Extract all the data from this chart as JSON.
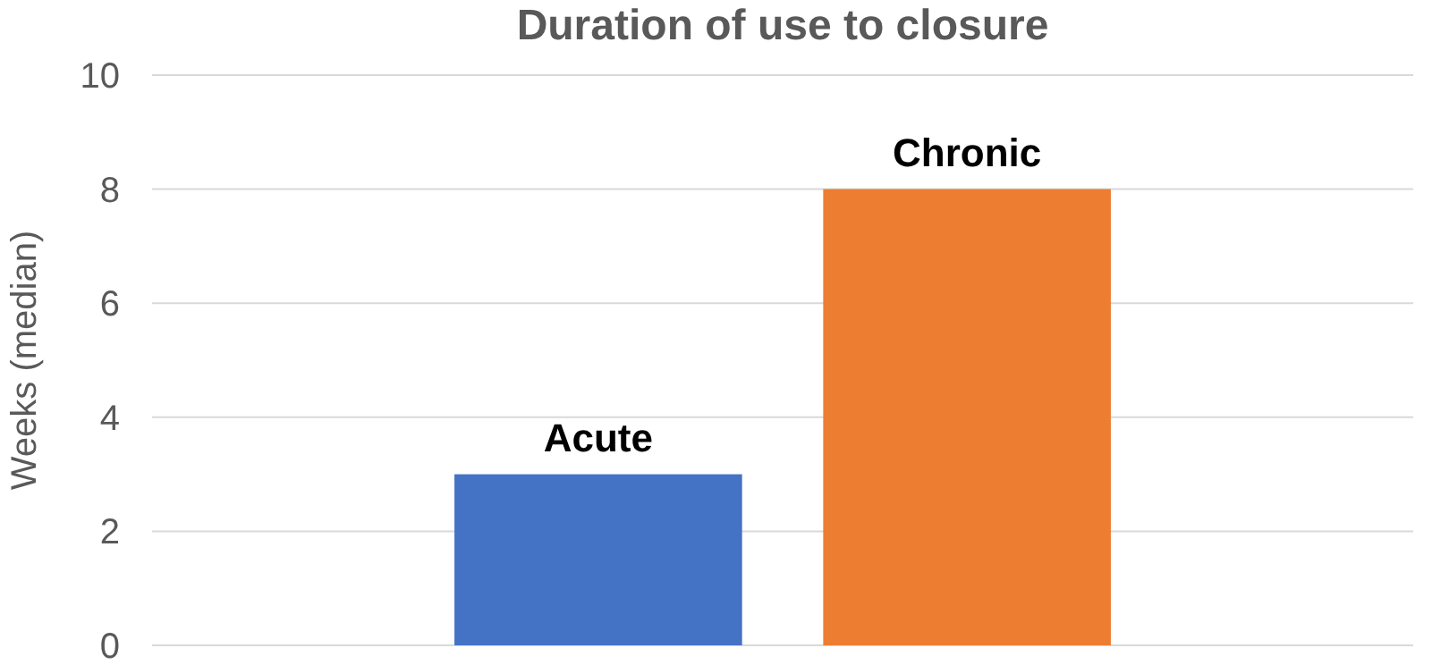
{
  "chart_data": {
    "type": "bar",
    "title": "Duration of use to closure",
    "ylabel": "Weeks (median)",
    "categories": [
      "Acute",
      "Chronic"
    ],
    "values": [
      3,
      8
    ],
    "colors": [
      "#4472c4",
      "#ed7d31"
    ],
    "ylim": [
      0,
      10
    ],
    "yticks": [
      0,
      2,
      4,
      6,
      8,
      10
    ],
    "grid": "y",
    "tick_labels": "y"
  }
}
